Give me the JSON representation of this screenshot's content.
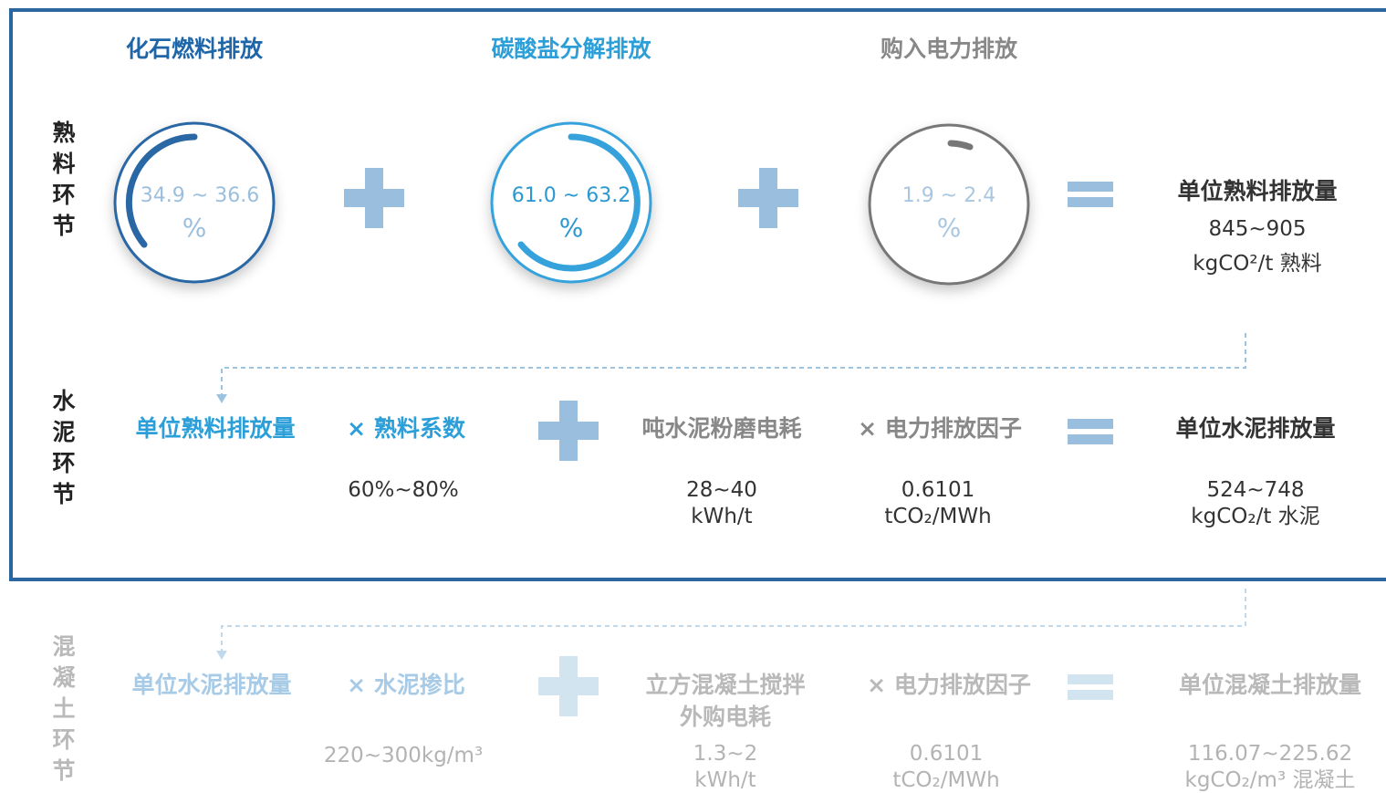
{
  "rows": [
    {
      "label": "熟料环节",
      "items": [
        {
          "title": "化石燃料排放",
          "range": "34.9 ~ 36.6",
          "unit": "%"
        },
        {
          "title": "碳酸盐分解排放",
          "range": "61.0 ~ 63.2",
          "unit": "%"
        },
        {
          "title": "购入电力排放",
          "range": "1.9 ~ 2.4",
          "unit": "%"
        }
      ],
      "result": {
        "title": "单位熟料排放量",
        "value": "845~905",
        "unit": "kgCO²/t 熟料"
      }
    },
    {
      "label": "水泥环节",
      "items": [
        {
          "title": "单位熟料排放量"
        },
        {
          "title": "× 熟料系数",
          "value": "60%~80%"
        },
        {
          "title": "吨水泥粉磨电耗",
          "value": "28~40",
          "unit": "kWh/t"
        },
        {
          "title": "× 电力排放因子",
          "value": "0.6101",
          "unit": "tCO₂/MWh"
        }
      ],
      "result": {
        "title": "单位水泥排放量",
        "value": "524~748",
        "unit": "kgCO₂/t 水泥"
      }
    },
    {
      "label": "混凝土环节",
      "items": [
        {
          "title": "单位水泥排放量"
        },
        {
          "title": "× 水泥掺比",
          "value": "220~300kg/m³"
        },
        {
          "title": "立方混凝土搅拌",
          "title2": "外购电耗",
          "value": "1.3~2",
          "unit": "kWh/t"
        },
        {
          "title": "× 电力排放因子",
          "value": "0.6101",
          "unit": "tCO₂/MWh"
        }
      ],
      "result": {
        "title": "单位混凝土排放量",
        "value": "116.07~225.62",
        "unit": "kgCO₂/m³ 混凝土"
      }
    }
  ]
}
